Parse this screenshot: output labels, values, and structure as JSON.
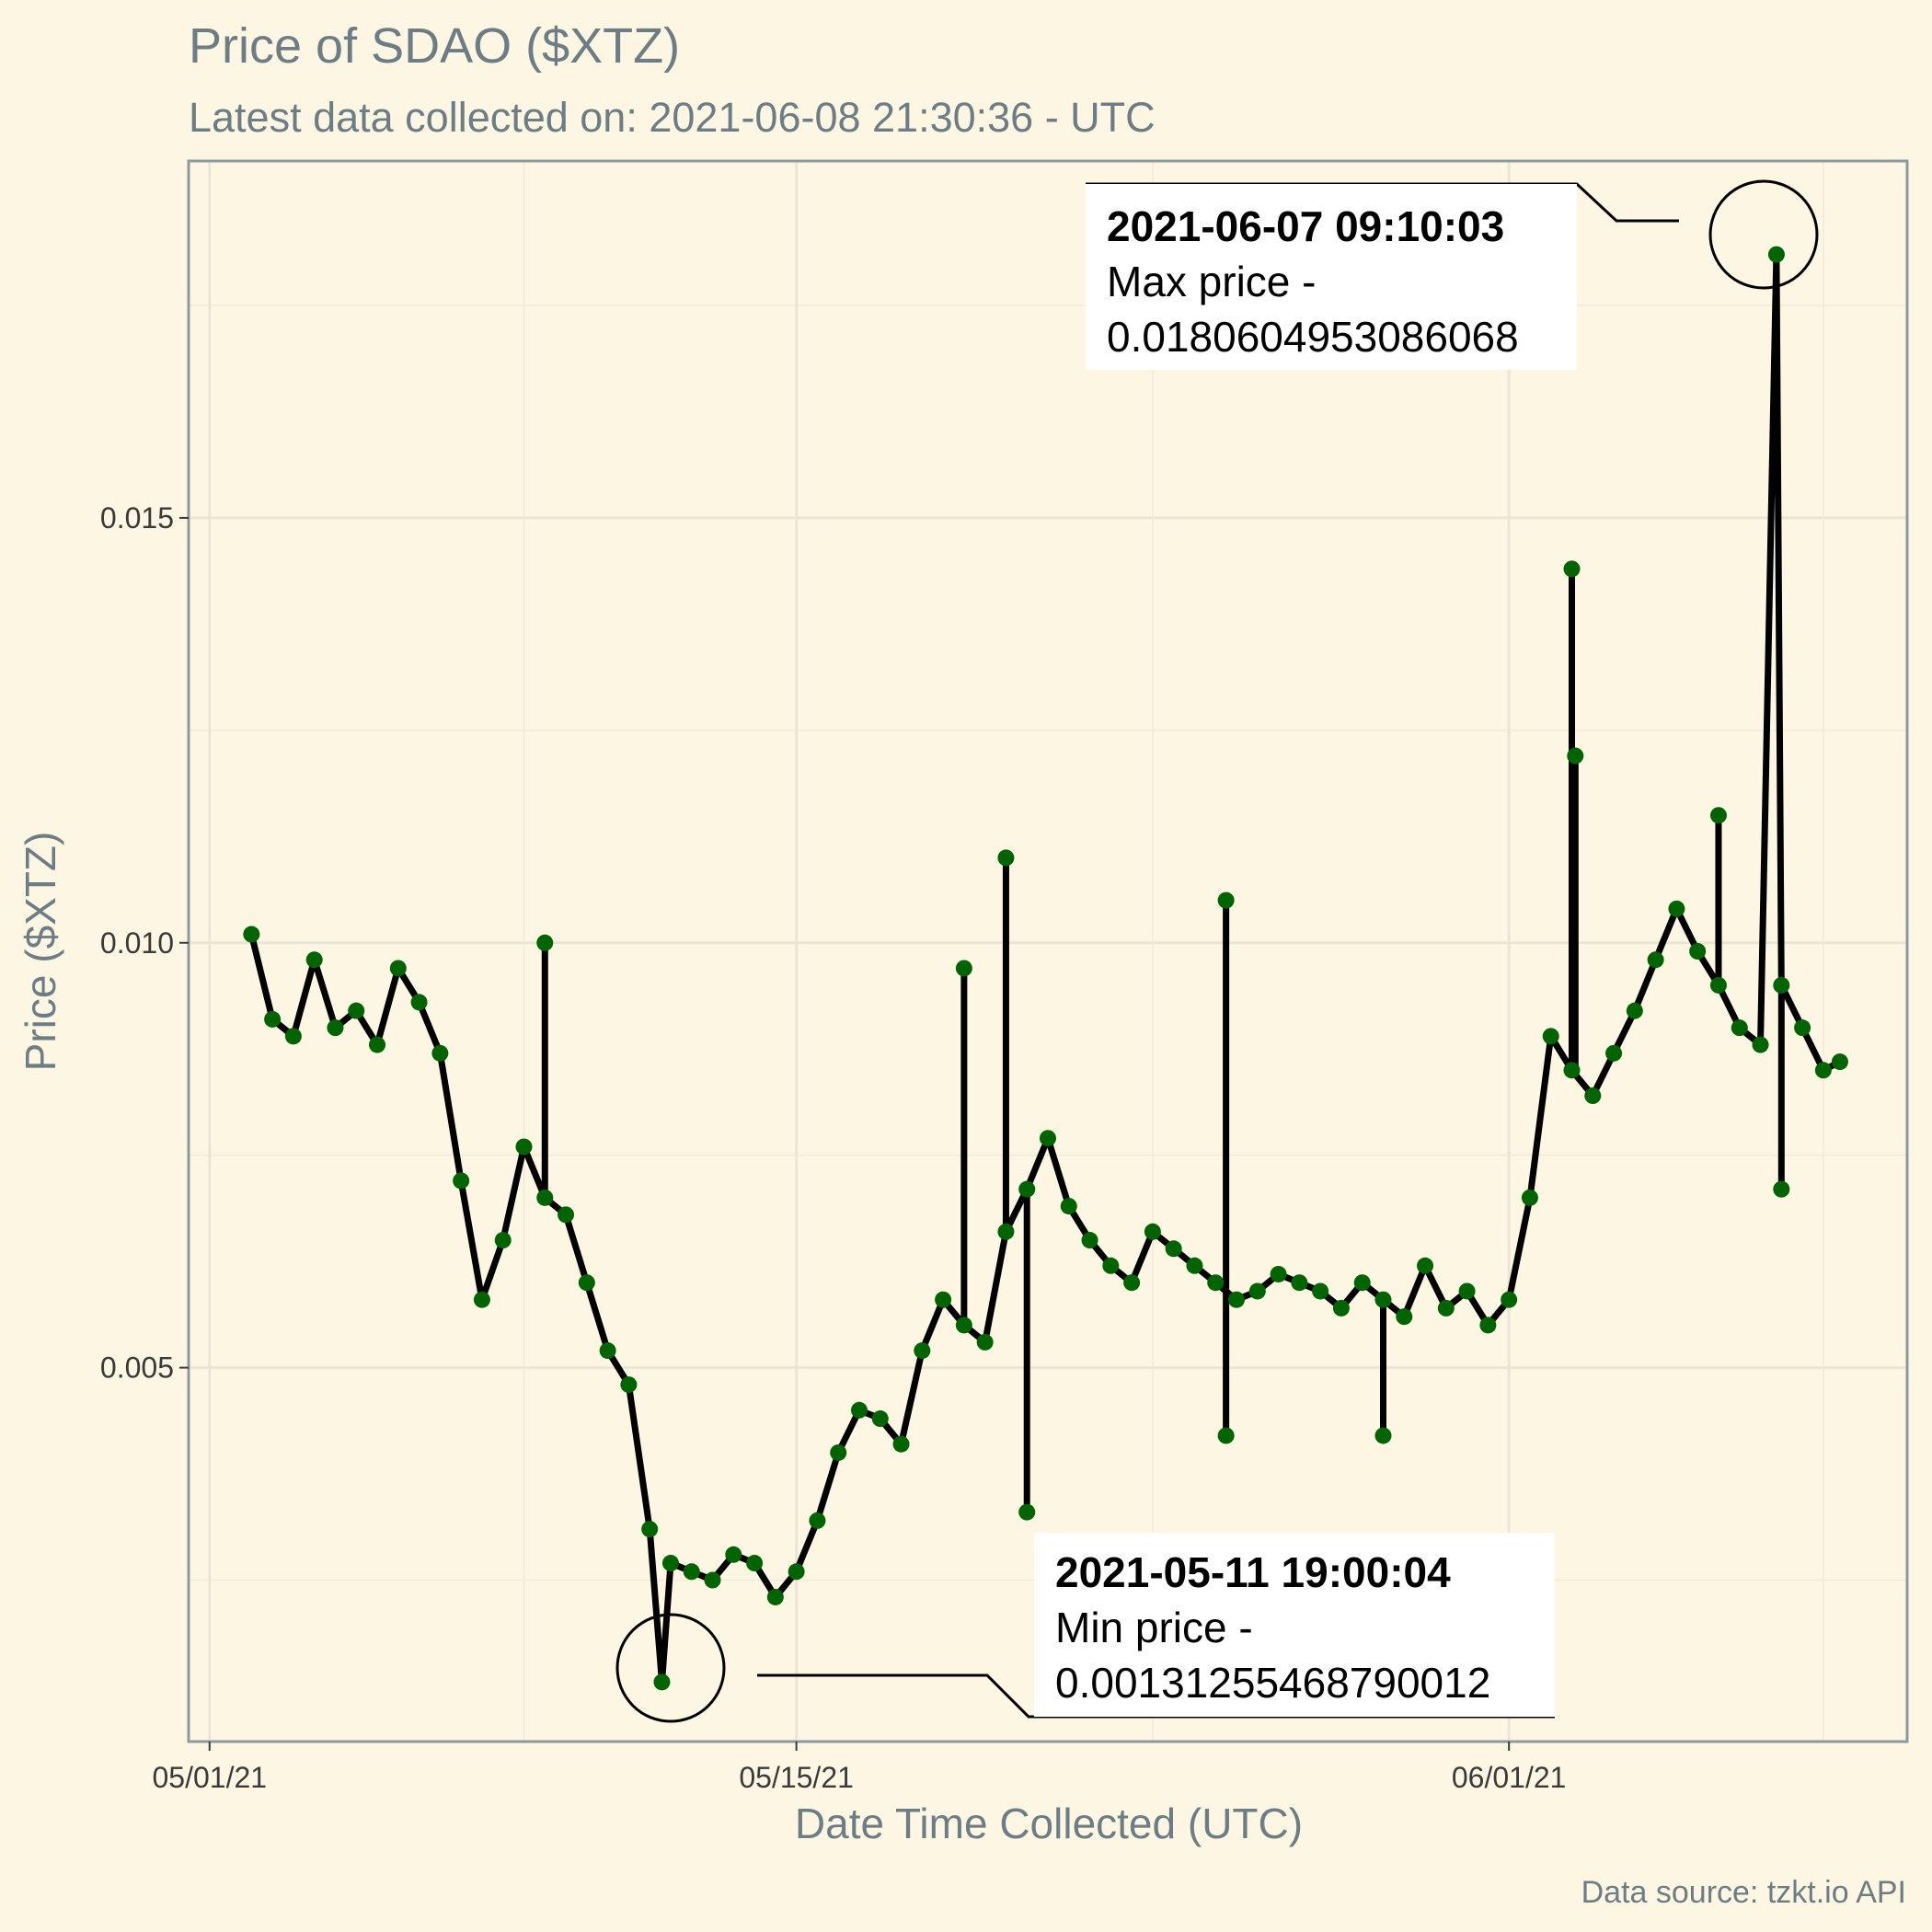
{
  "chart_data": {
    "type": "line",
    "title": "Price of SDAO ($XTZ)",
    "subtitle": "Latest data collected on: 2021-06-08 21:30:36  - UTC",
    "xlabel": "Date Time Collected (UTC)",
    "ylabel": "Price ($XTZ)",
    "caption": "Data source: tzkt.io API",
    "x_ticks": [
      "05/01/21",
      "05/15/21",
      "06/01/21"
    ],
    "y_ticks": [
      "0.005",
      "0.010",
      "0.015"
    ],
    "grid": true,
    "xlim": [
      "2021-04-30T12:00",
      "2021-06-10T12:00"
    ],
    "ylim": [
      0.0006,
      0.0192
    ],
    "line_color": "#000000",
    "point_color": "#006400",
    "series": [
      {
        "x": [
          "2021-05-02T00:00",
          "2021-05-02T12:00",
          "2021-05-03T00:00",
          "2021-05-03T12:00",
          "2021-05-04T00:00",
          "2021-05-04T12:00",
          "2021-05-05T00:00",
          "2021-05-05T12:00",
          "2021-05-06T00:00",
          "2021-05-06T12:00",
          "2021-05-07T00:00",
          "2021-05-07T12:00",
          "2021-05-08T00:00",
          "2021-05-08T12:00",
          "2021-05-09T00:00",
          "2021-05-09T12:00",
          "2021-05-10T00:00",
          "2021-05-10T12:00",
          "2021-05-11T00:00",
          "2021-05-11T12:00",
          "2021-05-11T19:00",
          "2021-05-12T00:00",
          "2021-05-12T12:00",
          "2021-05-13T00:00",
          "2021-05-13T12:00",
          "2021-05-14T00:00",
          "2021-05-14T12:00",
          "2021-05-15T00:00",
          "2021-05-15T12:00",
          "2021-05-16T00:00",
          "2021-05-16T12:00",
          "2021-05-17T00:00",
          "2021-05-17T12:00",
          "2021-05-18T00:00",
          "2021-05-18T12:00",
          "2021-05-19T00:00",
          "2021-05-19T12:00",
          "2021-05-20T00:00",
          "2021-05-20T12:00",
          "2021-05-21T00:00",
          "2021-05-21T12:00",
          "2021-05-22T00:00",
          "2021-05-22T12:00",
          "2021-05-23T00:00",
          "2021-05-23T12:00",
          "2021-05-24T00:00",
          "2021-05-24T12:00",
          "2021-05-25T00:00",
          "2021-05-25T12:00",
          "2021-05-26T00:00",
          "2021-05-26T12:00",
          "2021-05-27T00:00",
          "2021-05-27T12:00",
          "2021-05-28T00:00",
          "2021-05-28T12:00",
          "2021-05-29T00:00",
          "2021-05-29T12:00",
          "2021-05-30T00:00",
          "2021-05-30T12:00",
          "2021-05-31T00:00",
          "2021-05-31T12:00",
          "2021-06-01T00:00",
          "2021-06-01T12:00",
          "2021-06-02T00:00",
          "2021-06-02T12:00",
          "2021-06-03T00:00",
          "2021-06-03T12:00",
          "2021-06-04T00:00",
          "2021-06-04T12:00",
          "2021-06-05T00:00",
          "2021-06-05T12:00",
          "2021-06-06T00:00",
          "2021-06-06T12:00",
          "2021-06-07T00:00",
          "2021-06-07T09:10",
          "2021-06-07T12:00",
          "2021-06-08T00:00",
          "2021-06-08T12:00",
          "2021-06-08T21:30"
        ],
        "y": [
          0.0101,
          0.0091,
          0.0089,
          0.0098,
          0.009,
          0.0092,
          0.0088,
          0.0097,
          0.0093,
          0.0087,
          0.0072,
          0.0058,
          0.0065,
          0.0076,
          0.007,
          0.0068,
          0.006,
          0.0052,
          0.0048,
          0.0031,
          0.0013,
          0.0027,
          0.0026,
          0.0025,
          0.0028,
          0.0027,
          0.0023,
          0.0026,
          0.0032,
          0.004,
          0.0045,
          0.0044,
          0.0041,
          0.0052,
          0.0058,
          0.0055,
          0.0053,
          0.0066,
          0.0071,
          0.0077,
          0.0069,
          0.0065,
          0.0062,
          0.006,
          0.0066,
          0.0064,
          0.0062,
          0.006,
          0.0058,
          0.0059,
          0.0061,
          0.006,
          0.0059,
          0.0057,
          0.006,
          0.0058,
          0.0056,
          0.0062,
          0.0057,
          0.0059,
          0.0055,
          0.0058,
          0.007,
          0.0089,
          0.0085,
          0.0082,
          0.0087,
          0.0092,
          0.0098,
          0.0104,
          0.0099,
          0.0095,
          0.009,
          0.0088,
          0.0181,
          0.0095,
          0.009,
          0.0085,
          0.0086
        ],
        "spikes": [
          {
            "x": "2021-05-09T00:00",
            "y": 0.01
          },
          {
            "x": "2021-05-19T00:00",
            "y": 0.0097
          },
          {
            "x": "2021-05-20T00:00",
            "y": 0.011
          },
          {
            "x": "2021-05-25T06:00",
            "y": 0.0105
          },
          {
            "x": "2021-05-25T06:00",
            "y": 0.0042
          },
          {
            "x": "2021-05-20T12:00",
            "y": 0.0033
          },
          {
            "x": "2021-05-29T00:00",
            "y": 0.0042
          },
          {
            "x": "2021-06-02T12:00",
            "y": 0.0144
          },
          {
            "x": "2021-06-02T14:00",
            "y": 0.0122
          },
          {
            "x": "2021-06-06T00:00",
            "y": 0.0115
          },
          {
            "x": "2021-06-07T12:00",
            "y": 0.0071
          }
        ]
      }
    ],
    "annotations": [
      {
        "date": "2021-06-07 09:10:03",
        "line2": "Max price -",
        "line3": "0.0180604953086068",
        "x": "2021-06-07T09:10",
        "y": 0.0180604953086068
      },
      {
        "date": "2021-05-11 19:00:04",
        "line2": "Min price -",
        "line3": "0.0013125546879001​2",
        "x": "2021-05-11T19:00",
        "y": 0.00131255468790012
      }
    ]
  }
}
